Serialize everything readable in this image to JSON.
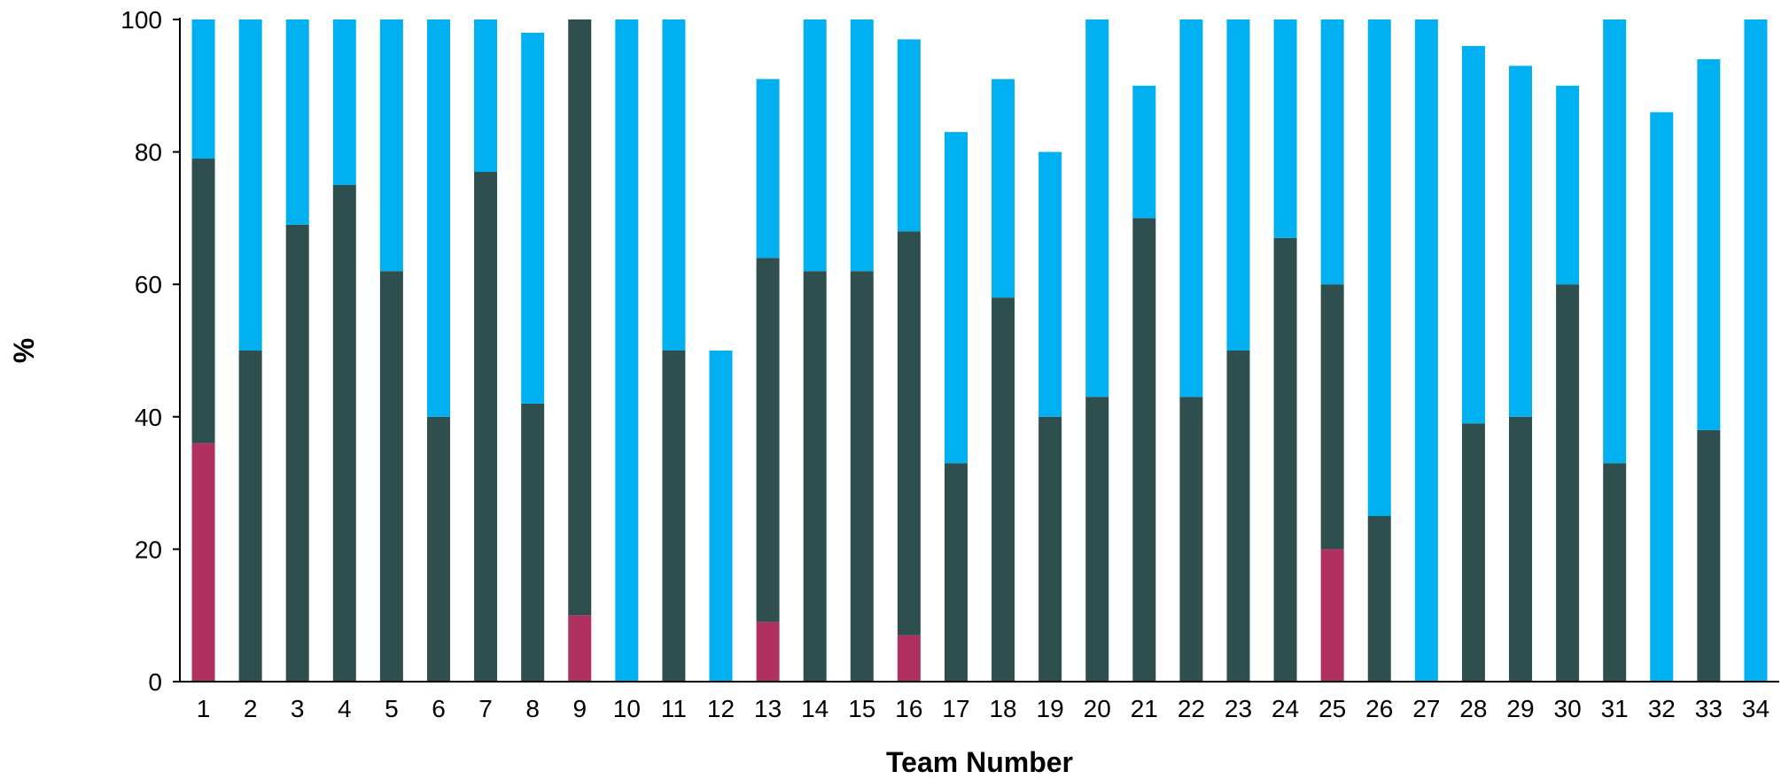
{
  "chart_data": {
    "type": "bar",
    "stacked": true,
    "xlabel": "Team Number",
    "ylabel": "%",
    "ylim": [
      0,
      100
    ],
    "yticks": [
      "0",
      "20",
      "40",
      "60",
      "80",
      "100"
    ],
    "grid": false,
    "legend": "none",
    "categories": [
      "1",
      "2",
      "3",
      "4",
      "5",
      "6",
      "7",
      "8",
      "9",
      "10",
      "11",
      "12",
      "13",
      "14",
      "15",
      "16",
      "17",
      "18",
      "19",
      "20",
      "21",
      "22",
      "23",
      "24",
      "25",
      "26",
      "27",
      "28",
      "29",
      "30",
      "31",
      "32",
      "33",
      "34"
    ],
    "series": [
      {
        "color": "#b03060",
        "values": [
          36,
          0,
          0,
          0,
          0,
          0,
          0,
          0,
          10,
          0,
          0,
          0,
          9,
          0,
          0,
          7,
          0,
          0,
          0,
          0,
          0,
          0,
          0,
          0,
          20,
          0,
          0,
          0,
          0,
          0,
          0,
          0,
          0,
          0
        ]
      },
      {
        "color": "#2f4f4f",
        "values": [
          43,
          50,
          69,
          75,
          62,
          40,
          77,
          42,
          90,
          0,
          50,
          0,
          55,
          62,
          62,
          61,
          33,
          58,
          40,
          43,
          70,
          43,
          50,
          67,
          40,
          25,
          0,
          39,
          40,
          60,
          33,
          0,
          38,
          0
        ]
      },
      {
        "color": "#00b0f0",
        "values": [
          21,
          50,
          31,
          25,
          38,
          60,
          23,
          56,
          0,
          100,
          50,
          50,
          27,
          38,
          38,
          29,
          50,
          33,
          40,
          57,
          20,
          57,
          50,
          33,
          40,
          75,
          100,
          57,
          53,
          30,
          67,
          86,
          56,
          100
        ]
      }
    ]
  }
}
